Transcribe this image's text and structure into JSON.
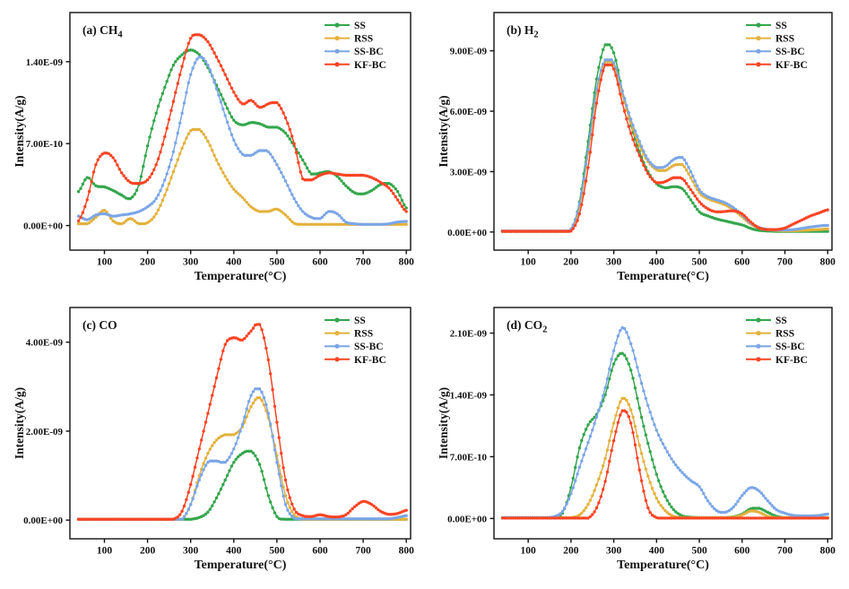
{
  "figure": {
    "background": "#ffffff",
    "x_axis_label": "Temperature(°C)",
    "y_axis_label": "Intensity(A/g)",
    "legend_position": "top-right-inside",
    "grid": "off",
    "legend": [
      {
        "name": "SS",
        "color": "#33A64C"
      },
      {
        "name": "RSS",
        "color": "#E3B23D"
      },
      {
        "name": "SS-BC",
        "color": "#7BA6E6"
      },
      {
        "name": "KF-BC",
        "color": "#FA4424"
      }
    ]
  },
  "chart_data": [
    {
      "type": "line",
      "panel": "a",
      "title": "(a) CH4",
      "title_main": "(a) CH",
      "title_sub": "4",
      "xlabel": "Temperature(°C)",
      "ylabel": "Intensity(A/g)",
      "x_range": [
        20,
        810
      ],
      "x_ticks": [
        100,
        200,
        300,
        400,
        500,
        600,
        700,
        800
      ],
      "y_scale": "1e-10",
      "y_range": [
        -2.1,
        18.2
      ],
      "y_ticks": [
        {
          "label": "0.00E+00",
          "value": 0
        },
        {
          "label": "7.00E-10",
          "value": 7
        },
        {
          "label": "1.40E-09",
          "value": 14
        }
      ],
      "x": [
        40,
        60,
        80,
        100,
        120,
        140,
        160,
        180,
        200,
        220,
        240,
        260,
        280,
        300,
        320,
        340,
        360,
        380,
        400,
        420,
        440,
        460,
        480,
        500,
        520,
        540,
        560,
        580,
        600,
        620,
        640,
        660,
        680,
        700,
        720,
        740,
        760,
        780,
        800
      ],
      "series": [
        {
          "name": "SS",
          "color": "#33A64C",
          "values": [
            2.9,
            4.1,
            3.4,
            3.3,
            3.0,
            2.6,
            2.3,
            3.5,
            6.8,
            9.6,
            11.8,
            13.7,
            14.6,
            15.0,
            14.6,
            13.5,
            12.0,
            10.4,
            9.0,
            8.6,
            8.8,
            8.7,
            8.4,
            8.4,
            7.9,
            6.8,
            5.6,
            4.4,
            4.5,
            4.6,
            4.2,
            3.4,
            2.8,
            2.7,
            3.0,
            3.5,
            3.6,
            2.9,
            1.5
          ]
        },
        {
          "name": "RSS",
          "color": "#E3B23D",
          "values": [
            0.15,
            0.15,
            0.7,
            1.3,
            0.4,
            0.15,
            0.6,
            0.15,
            0.25,
            1.0,
            2.6,
            4.6,
            6.6,
            8.1,
            8.2,
            7.2,
            5.6,
            4.2,
            3.1,
            2.4,
            1.6,
            1.2,
            1.2,
            1.4,
            0.9,
            0.2,
            0.1,
            0.1,
            0.1,
            0.1,
            0.1,
            0.1,
            0.1,
            0.1,
            0.1,
            0.1,
            0.1,
            0.1,
            0.1
          ]
        },
        {
          "name": "SS-BC",
          "color": "#7BA6E6",
          "values": [
            0.8,
            0.5,
            0.9,
            1.0,
            0.8,
            0.9,
            1.0,
            1.2,
            1.6,
            2.3,
            3.9,
            6.3,
            9.6,
            12.9,
            14.4,
            13.7,
            11.7,
            9.4,
            7.3,
            6.1,
            6.0,
            6.4,
            6.3,
            5.2,
            3.8,
            2.3,
            1.2,
            0.7,
            0.6,
            1.2,
            1.0,
            0.3,
            0.15,
            0.1,
            0.1,
            0.1,
            0.15,
            0.3,
            0.35
          ]
        },
        {
          "name": "KF-BC",
          "color": "#FA4424",
          "values": [
            0.4,
            2.2,
            5.2,
            6.2,
            5.8,
            4.5,
            3.7,
            3.6,
            3.9,
            5.2,
            7.6,
            10.6,
            13.6,
            16.0,
            16.3,
            15.7,
            14.4,
            12.9,
            11.4,
            10.4,
            10.7,
            10.1,
            10.4,
            10.5,
            9.2,
            7.0,
            4.0,
            3.9,
            4.3,
            4.5,
            4.4,
            4.3,
            4.3,
            4.3,
            4.1,
            3.7,
            3.2,
            2.2,
            1.2
          ]
        }
      ]
    },
    {
      "type": "line",
      "panel": "b",
      "title": "(b) H2",
      "title_main": "(b) H",
      "title_sub": "2",
      "xlabel": "Temperature(°C)",
      "ylabel": "Intensity(A/g)",
      "x_range": [
        20,
        810
      ],
      "x_ticks": [
        100,
        200,
        300,
        400,
        500,
        600,
        700,
        800
      ],
      "y_scale": "1e-9",
      "y_range": [
        -0.9,
        10.9
      ],
      "y_ticks": [
        {
          "label": "0.00E+00",
          "value": 0
        },
        {
          "label": "3.00E-09",
          "value": 3
        },
        {
          "label": "6.00E-09",
          "value": 6
        },
        {
          "label": "9.00E-09",
          "value": 9
        }
      ],
      "x": [
        40,
        60,
        80,
        100,
        120,
        140,
        160,
        180,
        200,
        220,
        240,
        260,
        280,
        300,
        320,
        340,
        360,
        380,
        400,
        420,
        440,
        460,
        480,
        500,
        520,
        540,
        560,
        580,
        600,
        620,
        640,
        660,
        680,
        700,
        720,
        740,
        760,
        780,
        800
      ],
      "series": [
        {
          "name": "SS",
          "color": "#33A64C",
          "values": [
            0.03,
            0.03,
            0.03,
            0.03,
            0.03,
            0.03,
            0.03,
            0.03,
            0.1,
            1.5,
            4.5,
            7.6,
            9.3,
            8.9,
            7.0,
            5.3,
            4.0,
            3.0,
            2.4,
            2.2,
            2.25,
            2.15,
            1.6,
            1.0,
            0.8,
            0.65,
            0.55,
            0.45,
            0.35,
            0.18,
            0.08,
            0.05,
            0.03,
            0.03,
            0.03,
            0.03,
            0.03,
            0.03,
            0.03
          ]
        },
        {
          "name": "RSS",
          "color": "#E3B23D",
          "values": [
            0.05,
            0.05,
            0.05,
            0.05,
            0.05,
            0.05,
            0.05,
            0.05,
            0.1,
            1.2,
            3.9,
            6.9,
            8.45,
            8.3,
            6.8,
            5.4,
            4.3,
            3.5,
            3.1,
            3.05,
            3.3,
            3.35,
            2.7,
            1.95,
            1.65,
            1.5,
            1.35,
            1.1,
            0.75,
            0.4,
            0.2,
            0.12,
            0.08,
            0.06,
            0.06,
            0.08,
            0.1,
            0.12,
            0.15
          ]
        },
        {
          "name": "SS-BC",
          "color": "#7BA6E6",
          "values": [
            0.05,
            0.05,
            0.05,
            0.05,
            0.05,
            0.05,
            0.05,
            0.05,
            0.15,
            1.4,
            4.1,
            7.1,
            8.55,
            8.4,
            7.0,
            5.6,
            4.5,
            3.6,
            3.2,
            3.25,
            3.6,
            3.7,
            3.0,
            2.1,
            1.75,
            1.6,
            1.45,
            1.2,
            0.85,
            0.45,
            0.22,
            0.13,
            0.1,
            0.1,
            0.12,
            0.18,
            0.25,
            0.3,
            0.33
          ]
        },
        {
          "name": "KF-BC",
          "color": "#FA4424",
          "values": [
            0.03,
            0.03,
            0.03,
            0.03,
            0.03,
            0.03,
            0.03,
            0.03,
            0.05,
            0.9,
            3.2,
            6.4,
            8.3,
            8.1,
            6.4,
            4.9,
            3.8,
            2.9,
            2.45,
            2.5,
            2.7,
            2.65,
            2.1,
            1.5,
            1.15,
            1.0,
            1.02,
            1.05,
            0.9,
            0.5,
            0.2,
            0.12,
            0.12,
            0.2,
            0.4,
            0.6,
            0.8,
            0.95,
            1.1
          ]
        }
      ]
    },
    {
      "type": "line",
      "panel": "c",
      "title": "(c) CO",
      "title_main": "(c) CO",
      "title_sub": "",
      "xlabel": "Temperature(°C)",
      "ylabel": "Intensity(A/g)",
      "x_range": [
        20,
        810
      ],
      "x_ticks": [
        100,
        200,
        300,
        400,
        500,
        600,
        700,
        800
      ],
      "y_scale": "1e-9",
      "y_range": [
        -0.42,
        4.78
      ],
      "y_ticks": [
        {
          "label": "0.00E+00",
          "value": 0
        },
        {
          "label": "2.00E-09",
          "value": 2
        },
        {
          "label": "4.00E-09",
          "value": 4
        }
      ],
      "x": [
        40,
        60,
        80,
        100,
        120,
        140,
        160,
        180,
        200,
        220,
        240,
        260,
        280,
        300,
        320,
        340,
        360,
        380,
        400,
        420,
        440,
        460,
        480,
        500,
        520,
        540,
        560,
        580,
        600,
        620,
        640,
        660,
        680,
        700,
        720,
        740,
        760,
        780,
        800
      ],
      "series": [
        {
          "name": "SS",
          "color": "#33A64C",
          "values": [
            0.02,
            0.02,
            0.02,
            0.02,
            0.02,
            0.02,
            0.02,
            0.02,
            0.02,
            0.02,
            0.02,
            0.02,
            0.02,
            0.02,
            0.06,
            0.18,
            0.5,
            0.9,
            1.3,
            1.5,
            1.55,
            1.25,
            0.55,
            0.08,
            0.02,
            0.02,
            0.02,
            0.02,
            0.02,
            0.02,
            0.02,
            0.02,
            0.02,
            0.02,
            0.02,
            0.02,
            0.02,
            0.02,
            0.02
          ]
        },
        {
          "name": "RSS",
          "color": "#E3B23D",
          "values": [
            0.02,
            0.02,
            0.02,
            0.02,
            0.02,
            0.02,
            0.02,
            0.02,
            0.02,
            0.02,
            0.02,
            0.02,
            0.02,
            0.35,
            1.0,
            1.5,
            1.8,
            1.92,
            1.92,
            2.1,
            2.55,
            2.75,
            2.3,
            1.45,
            0.55,
            0.12,
            0.02,
            0.02,
            0.02,
            0.02,
            0.02,
            0.02,
            0.02,
            0.02,
            0.02,
            0.02,
            0.02,
            0.02,
            0.02
          ]
        },
        {
          "name": "SS-BC",
          "color": "#7BA6E6",
          "values": [
            0.02,
            0.02,
            0.02,
            0.02,
            0.02,
            0.02,
            0.02,
            0.02,
            0.02,
            0.02,
            0.02,
            0.02,
            0.02,
            0.35,
            0.9,
            1.3,
            1.33,
            1.3,
            1.6,
            2.15,
            2.8,
            2.95,
            2.4,
            1.3,
            0.35,
            0.05,
            0.03,
            0.03,
            0.03,
            0.03,
            0.03,
            0.03,
            0.03,
            0.03,
            0.03,
            0.03,
            0.03,
            0.06,
            0.1
          ]
        },
        {
          "name": "KF-BC",
          "color": "#FA4424",
          "values": [
            0.02,
            0.02,
            0.02,
            0.02,
            0.02,
            0.02,
            0.02,
            0.02,
            0.02,
            0.02,
            0.02,
            0.02,
            0.2,
            0.8,
            1.6,
            2.4,
            3.2,
            3.95,
            4.1,
            4.05,
            4.25,
            4.4,
            3.6,
            2.2,
            0.9,
            0.25,
            0.1,
            0.08,
            0.12,
            0.08,
            0.07,
            0.12,
            0.3,
            0.42,
            0.35,
            0.2,
            0.13,
            0.15,
            0.22
          ]
        }
      ]
    },
    {
      "type": "line",
      "panel": "d",
      "title": "(d) CO2",
      "title_main": "(d) CO",
      "title_sub": "2",
      "xlabel": "Temperature(°C)",
      "ylabel": "Intensity(A/g)",
      "x_range": [
        20,
        810
      ],
      "x_ticks": [
        100,
        200,
        300,
        400,
        500,
        600,
        700,
        800
      ],
      "y_scale": "1e-10",
      "y_range": [
        -2.3,
        23.9
      ],
      "y_ticks": [
        {
          "label": "0.00E+00",
          "value": 0
        },
        {
          "label": "7.00E-10",
          "value": 7
        },
        {
          "label": "1.40E-09",
          "value": 14
        },
        {
          "label": "2.10E-09",
          "value": 21
        }
      ],
      "x": [
        40,
        60,
        80,
        100,
        120,
        140,
        160,
        180,
        200,
        220,
        240,
        260,
        280,
        300,
        320,
        340,
        360,
        380,
        400,
        420,
        440,
        460,
        480,
        500,
        520,
        540,
        560,
        580,
        600,
        620,
        640,
        660,
        680,
        700,
        720,
        740,
        760,
        780,
        800
      ],
      "series": [
        {
          "name": "SS",
          "color": "#33A64C",
          "values": [
            0.1,
            0.1,
            0.1,
            0.1,
            0.1,
            0.1,
            0.1,
            0.6,
            3.5,
            8.0,
            10.6,
            11.8,
            14.0,
            17.5,
            18.7,
            16.8,
            12.5,
            8.5,
            5.0,
            2.5,
            1.0,
            0.3,
            0.15,
            0.1,
            0.1,
            0.1,
            0.1,
            0.2,
            0.5,
            1.1,
            1.15,
            0.7,
            0.25,
            0.1,
            0.1,
            0.1,
            0.1,
            0.1,
            0.1
          ]
        },
        {
          "name": "RSS",
          "color": "#E3B23D",
          "values": [
            0.1,
            0.1,
            0.1,
            0.1,
            0.1,
            0.1,
            0.1,
            0.1,
            0.1,
            0.4,
            1.6,
            3.8,
            6.8,
            10.8,
            13.6,
            12.3,
            8.3,
            4.8,
            2.3,
            0.9,
            0.25,
            0.1,
            0.1,
            0.1,
            0.1,
            0.1,
            0.1,
            0.15,
            0.4,
            0.85,
            0.7,
            0.25,
            0.1,
            0.1,
            0.1,
            0.1,
            0.1,
            0.1,
            0.1
          ]
        },
        {
          "name": "SS-BC",
          "color": "#7BA6E6",
          "values": [
            0.1,
            0.1,
            0.1,
            0.1,
            0.1,
            0.1,
            0.2,
            0.8,
            2.8,
            5.8,
            8.6,
            11.5,
            14.8,
            19.0,
            21.6,
            19.8,
            16.2,
            12.8,
            10.0,
            8.0,
            6.4,
            5.2,
            4.3,
            3.6,
            2.0,
            0.9,
            0.7,
            1.3,
            2.6,
            3.5,
            3.1,
            2.0,
            1.0,
            0.6,
            0.35,
            0.3,
            0.3,
            0.35,
            0.5
          ]
        },
        {
          "name": "KF-BC",
          "color": "#FA4424",
          "values": [
            0.05,
            0.05,
            0.05,
            0.05,
            0.05,
            0.05,
            0.05,
            0.05,
            0.05,
            0.05,
            0.05,
            1.2,
            4.2,
            8.8,
            12.2,
            10.8,
            5.5,
            1.2,
            0.1,
            0.05,
            0.05,
            0.05,
            0.05,
            0.05,
            0.05,
            0.05,
            0.05,
            0.05,
            0.05,
            0.05,
            0.05,
            0.05,
            0.05,
            0.05,
            0.05,
            0.05,
            0.05,
            0.05,
            0.05
          ]
        }
      ]
    }
  ]
}
